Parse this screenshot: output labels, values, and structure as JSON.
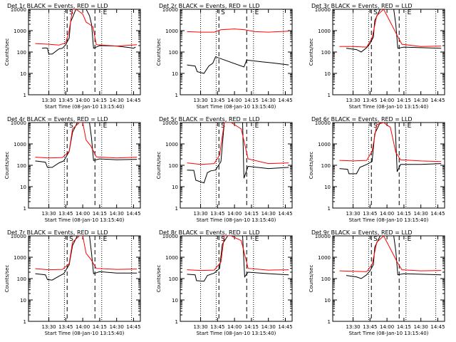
{
  "legend_text": "BLACK = Events, RED = LLD",
  "ylabel": "Counts/sec",
  "xlabel": "Start Time (08-Jan-10 13:15:40)",
  "x_ticks": [
    "13:30",
    "13:45",
    "14:00",
    "14:15",
    "14:30",
    "14:45"
  ],
  "y_ticks": [
    "1",
    "10",
    "100",
    "1000",
    "10000"
  ],
  "markers": {
    "start": "S",
    "end": "E"
  },
  "colors": {
    "events": "#000000",
    "lld": "#ff0000"
  },
  "chart_data": [
    {
      "type": "line",
      "title": "Det 1r",
      "ylim": [
        1,
        10000
      ],
      "yscale": "log",
      "series": [
        {
          "name": "Events",
          "x": [
            13.4,
            13.45,
            13.48,
            13.5,
            13.55,
            13.65,
            13.7,
            13.75,
            13.8,
            13.82,
            13.9,
            13.95,
            14.0,
            14.05,
            14.1,
            14.13,
            14.16,
            14.25,
            14.5,
            14.7,
            14.75,
            14.78
          ],
          "y": [
            150,
            155,
            150,
            80,
            80,
            140,
            150,
            220,
            450,
            2500,
            10000,
            10000,
            10000,
            10000,
            5000,
            2000,
            150,
            200,
            190,
            160,
            150,
            170
          ]
        },
        {
          "name": "LLD",
          "x": [
            13.3,
            13.5,
            13.65,
            13.75,
            13.8,
            13.85,
            13.9,
            14.0,
            14.05,
            14.1,
            14.15,
            14.2,
            14.5,
            14.8
          ],
          "y": [
            250,
            230,
            210,
            270,
            1000,
            10000,
            10000,
            6000,
            2500,
            2000,
            1500,
            220,
            190,
            220
          ]
        }
      ]
    },
    {
      "type": "line",
      "title": "Det 2r",
      "ylim": [
        1,
        10000
      ],
      "yscale": "log",
      "series": [
        {
          "name": "Events",
          "x": [
            13.3,
            13.42,
            13.45,
            13.55,
            13.62,
            13.68,
            13.72,
            14.14,
            14.18,
            14.4,
            14.6,
            14.8
          ],
          "y": [
            25,
            22,
            12,
            10,
            22,
            30,
            60,
            20,
            42,
            35,
            30,
            25
          ]
        },
        {
          "name": "LLD",
          "x": [
            13.3,
            13.5,
            13.7,
            13.8,
            14.0,
            14.15,
            14.3,
            14.5,
            14.8
          ],
          "y": [
            900,
            850,
            850,
            1100,
            1200,
            1100,
            900,
            850,
            950
          ]
        }
      ]
    },
    {
      "type": "line",
      "title": "Det 3r",
      "ylim": [
        1,
        10000
      ],
      "yscale": "log",
      "series": [
        {
          "name": "Events",
          "x": [
            13.4,
            13.55,
            13.62,
            13.7,
            13.75,
            13.8,
            13.82,
            13.9,
            14.0,
            14.1,
            14.13,
            14.16,
            14.25,
            14.5,
            14.8
          ],
          "y": [
            150,
            130,
            100,
            160,
            250,
            500,
            3000,
            10000,
            10000,
            10000,
            2000,
            150,
            170,
            160,
            150
          ]
        },
        {
          "name": "LLD",
          "x": [
            13.3,
            13.5,
            13.7,
            13.78,
            13.85,
            13.95,
            14.05,
            14.15,
            14.22,
            14.5,
            14.8
          ],
          "y": [
            180,
            180,
            170,
            450,
            5000,
            10000,
            2500,
            600,
            230,
            180,
            190
          ]
        }
      ]
    },
    {
      "type": "line",
      "title": "Det 4r",
      "ylim": [
        1,
        10000
      ],
      "yscale": "log",
      "series": [
        {
          "name": "Events",
          "x": [
            13.3,
            13.45,
            13.48,
            13.55,
            13.65,
            13.72,
            13.8,
            13.85,
            13.92,
            14.0,
            14.1,
            14.13,
            14.16,
            14.25,
            14.5,
            14.8
          ],
          "y": [
            160,
            140,
            80,
            80,
            130,
            160,
            450,
            3500,
            10000,
            10000,
            10000,
            1800,
            170,
            200,
            180,
            190
          ]
        },
        {
          "name": "LLD",
          "x": [
            13.3,
            13.5,
            13.7,
            13.8,
            13.85,
            13.95,
            14.0,
            14.05,
            14.12,
            14.2,
            14.5,
            14.8
          ],
          "y": [
            240,
            220,
            230,
            450,
            5000,
            10000,
            10000,
            1500,
            800,
            250,
            220,
            240
          ]
        }
      ]
    },
    {
      "type": "line",
      "title": "Det 5r",
      "ylim": [
        1,
        10000
      ],
      "yscale": "log",
      "series": [
        {
          "name": "Events",
          "x": [
            13.3,
            13.4,
            13.43,
            13.55,
            13.6,
            13.65,
            13.72,
            13.8,
            13.85,
            13.95,
            14.12,
            14.14,
            14.2,
            14.5,
            14.8
          ],
          "y": [
            60,
            58,
            20,
            15,
            45,
            55,
            60,
            150,
            10000,
            10000,
            10000,
            25,
            90,
            70,
            80
          ]
        },
        {
          "name": "LLD",
          "x": [
            13.3,
            13.5,
            13.7,
            13.78,
            13.85,
            13.95,
            14.1,
            14.2,
            14.5,
            14.8
          ],
          "y": [
            130,
            110,
            120,
            300,
            10000,
            10000,
            5000,
            200,
            120,
            130
          ]
        }
      ]
    },
    {
      "type": "line",
      "title": "Det 6r",
      "ylim": [
        1,
        10000
      ],
      "yscale": "log",
      "series": [
        {
          "name": "Events",
          "x": [
            13.3,
            13.42,
            13.44,
            13.55,
            13.6,
            13.7,
            13.78,
            13.82,
            13.9,
            14.0,
            14.12,
            14.15,
            14.2,
            14.5,
            14.8
          ],
          "y": [
            70,
            65,
            40,
            40,
            80,
            110,
            150,
            3000,
            10000,
            10000,
            10000,
            50,
            110,
            110,
            120
          ]
        },
        {
          "name": "LLD",
          "x": [
            13.3,
            13.5,
            13.7,
            13.78,
            13.85,
            13.95,
            14.05,
            14.13,
            14.2,
            14.5,
            14.8
          ],
          "y": [
            170,
            160,
            170,
            450,
            8000,
            10000,
            6000,
            400,
            180,
            160,
            150
          ]
        }
      ]
    },
    {
      "type": "line",
      "title": "Det 7r",
      "ylim": [
        1,
        10000
      ],
      "yscale": "log",
      "series": [
        {
          "name": "Events",
          "x": [
            13.3,
            13.45,
            13.48,
            13.55,
            13.65,
            13.72,
            13.8,
            13.85,
            13.92,
            14.0,
            14.1,
            14.13,
            14.16,
            14.25,
            14.5,
            14.8
          ],
          "y": [
            170,
            150,
            90,
            85,
            130,
            170,
            450,
            3500,
            10000,
            10000,
            10000,
            1500,
            170,
            210,
            180,
            180
          ]
        },
        {
          "name": "LLD",
          "x": [
            13.3,
            13.5,
            13.7,
            13.8,
            13.85,
            13.95,
            14.0,
            14.05,
            14.12,
            14.2,
            14.5,
            14.8
          ],
          "y": [
            290,
            260,
            270,
            500,
            5000,
            10000,
            10000,
            1500,
            800,
            300,
            270,
            280
          ]
        }
      ]
    },
    {
      "type": "line",
      "title": "Det 8r",
      "ylim": [
        1,
        10000
      ],
      "yscale": "log",
      "series": [
        {
          "name": "Events",
          "x": [
            13.3,
            13.42,
            13.44,
            13.55,
            13.6,
            13.7,
            13.78,
            13.82,
            13.9,
            14.0,
            14.12,
            14.15,
            14.2,
            14.5,
            14.8
          ],
          "y": [
            160,
            150,
            80,
            75,
            140,
            180,
            300,
            4000,
            10000,
            10000,
            10000,
            120,
            200,
            170,
            150
          ]
        },
        {
          "name": "LLD",
          "x": [
            13.3,
            13.5,
            13.7,
            13.8,
            13.85,
            13.95,
            14.1,
            14.2,
            14.5,
            14.8
          ],
          "y": [
            260,
            240,
            250,
            600,
            10000,
            10000,
            6000,
            300,
            250,
            260
          ]
        }
      ]
    },
    {
      "type": "line",
      "title": "Det 9r",
      "ylim": [
        1,
        10000
      ],
      "yscale": "log",
      "series": [
        {
          "name": "Events",
          "x": [
            13.4,
            13.55,
            13.62,
            13.7,
            13.75,
            13.8,
            13.82,
            13.9,
            14.0,
            14.1,
            14.13,
            14.16,
            14.25,
            14.5,
            14.8
          ],
          "y": [
            140,
            120,
            100,
            150,
            230,
            450,
            3000,
            10000,
            10000,
            10000,
            2000,
            150,
            170,
            160,
            150
          ]
        },
        {
          "name": "LLD",
          "x": [
            13.3,
            13.5,
            13.7,
            13.78,
            13.85,
            13.95,
            14.05,
            14.15,
            14.22,
            14.5,
            14.8
          ],
          "y": [
            230,
            220,
            210,
            450,
            5000,
            10000,
            2500,
            600,
            260,
            230,
            240
          ]
        }
      ]
    }
  ]
}
